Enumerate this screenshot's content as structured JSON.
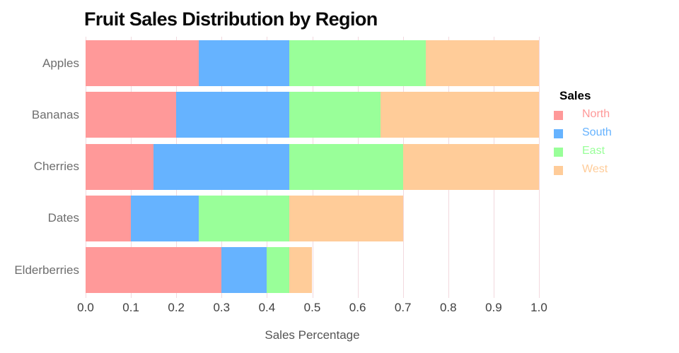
{
  "title": "Fruit Sales Distribution by Region",
  "chart_data": {
    "type": "bar",
    "orientation": "horizontal",
    "stacked": true,
    "title": "Fruit Sales Distribution by Region",
    "xlabel": "Sales Percentage",
    "ylabel": "",
    "categories": [
      "Apples",
      "Bananas",
      "Cherries",
      "Dates",
      "Elderberries"
    ],
    "series": [
      {
        "name": "North",
        "color": "#FF9999",
        "values": [
          0.25,
          0.2,
          0.15,
          0.1,
          0.3
        ]
      },
      {
        "name": "South",
        "color": "#66B3FF",
        "values": [
          0.2,
          0.25,
          0.3,
          0.15,
          0.1
        ]
      },
      {
        "name": "East",
        "color": "#99FF99",
        "values": [
          0.3,
          0.2,
          0.25,
          0.2,
          0.05
        ]
      },
      {
        "name": "West",
        "color": "#FFCC99",
        "values": [
          0.25,
          0.35,
          0.3,
          0.25,
          0.05
        ]
      }
    ],
    "totals": [
      1.0,
      1.0,
      1.0,
      0.7,
      0.5
    ],
    "xlim": [
      0.0,
      1.0
    ],
    "x_ticks": [
      "0.0",
      "0.1",
      "0.2",
      "0.3",
      "0.4",
      "0.5",
      "0.6",
      "0.7",
      "0.8",
      "0.9",
      "1.0"
    ],
    "grid": true,
    "legend": {
      "title": "Sales",
      "position": "right",
      "entries": [
        "North",
        "South",
        "East",
        "West"
      ]
    }
  },
  "colors": {
    "background": "#FFFFFF",
    "gridline": "#F2D9DE",
    "title_text": "#0A0A0A",
    "category_text": "#6E6E6E",
    "tick_text": "#3F3F3F",
    "axis_title_text": "#555555",
    "legend_title_text": "#000000"
  }
}
